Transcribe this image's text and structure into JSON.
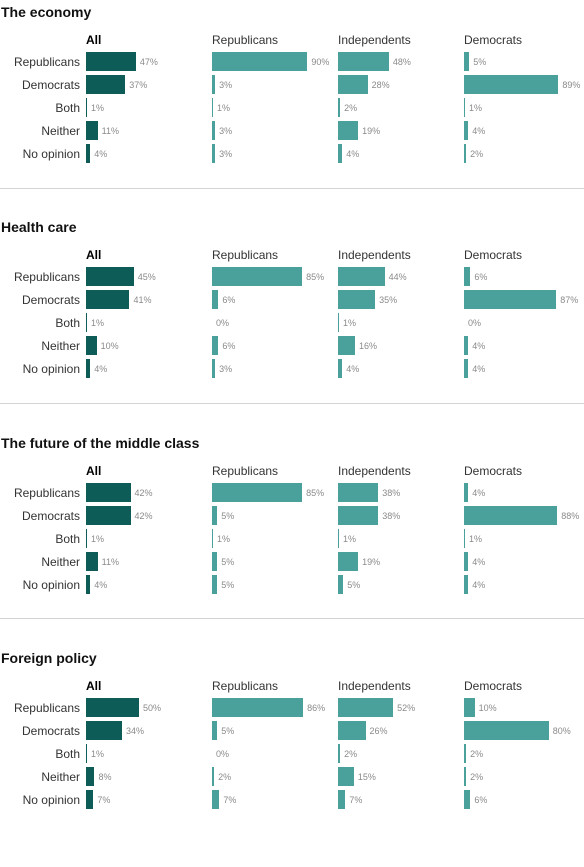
{
  "colors": {
    "all": "#0d5c57",
    "group": "#4aa19c"
  },
  "chart_data": [
    {
      "type": "bar",
      "title": "The economy",
      "columns": [
        "All",
        "Republicans",
        "Independents",
        "Democrats"
      ],
      "categories": [
        "Republicans",
        "Democrats",
        "Both",
        "Neither",
        "No opinion"
      ],
      "series": [
        {
          "name": "All",
          "values": [
            47,
            37,
            1,
            11,
            4
          ]
        },
        {
          "name": "Republicans",
          "values": [
            90,
            3,
            1,
            3,
            3
          ]
        },
        {
          "name": "Independents",
          "values": [
            48,
            28,
            2,
            19,
            4
          ]
        },
        {
          "name": "Democrats",
          "values": [
            5,
            89,
            1,
            4,
            2
          ]
        }
      ],
      "unit": "%"
    },
    {
      "type": "bar",
      "title": "Health care",
      "columns": [
        "All",
        "Republicans",
        "Independents",
        "Democrats"
      ],
      "categories": [
        "Republicans",
        "Democrats",
        "Both",
        "Neither",
        "No opinion"
      ],
      "series": [
        {
          "name": "All",
          "values": [
            45,
            41,
            1,
            10,
            4
          ]
        },
        {
          "name": "Republicans",
          "values": [
            85,
            6,
            0,
            6,
            3
          ]
        },
        {
          "name": "Independents",
          "values": [
            44,
            35,
            1,
            16,
            4
          ]
        },
        {
          "name": "Democrats",
          "values": [
            6,
            87,
            0,
            4,
            4
          ]
        }
      ],
      "unit": "%"
    },
    {
      "type": "bar",
      "title": "The future of the middle class",
      "columns": [
        "All",
        "Republicans",
        "Independents",
        "Democrats"
      ],
      "categories": [
        "Republicans",
        "Democrats",
        "Both",
        "Neither",
        "No opinion"
      ],
      "series": [
        {
          "name": "All",
          "values": [
            42,
            42,
            1,
            11,
            4
          ]
        },
        {
          "name": "Republicans",
          "values": [
            85,
            5,
            1,
            5,
            5
          ]
        },
        {
          "name": "Independents",
          "values": [
            38,
            38,
            1,
            19,
            5
          ]
        },
        {
          "name": "Democrats",
          "values": [
            4,
            88,
            1,
            4,
            4
          ]
        }
      ],
      "unit": "%"
    },
    {
      "type": "bar",
      "title": "Foreign policy",
      "columns": [
        "All",
        "Republicans",
        "Independents",
        "Democrats"
      ],
      "categories": [
        "Republicans",
        "Democrats",
        "Both",
        "Neither",
        "No opinion"
      ],
      "series": [
        {
          "name": "All",
          "values": [
            50,
            34,
            1,
            8,
            7
          ]
        },
        {
          "name": "Republicans",
          "values": [
            86,
            5,
            0,
            2,
            7
          ]
        },
        {
          "name": "Independents",
          "values": [
            52,
            26,
            2,
            15,
            7
          ]
        },
        {
          "name": "Democrats",
          "values": [
            10,
            80,
            2,
            2,
            6
          ]
        }
      ],
      "unit": "%"
    }
  ]
}
